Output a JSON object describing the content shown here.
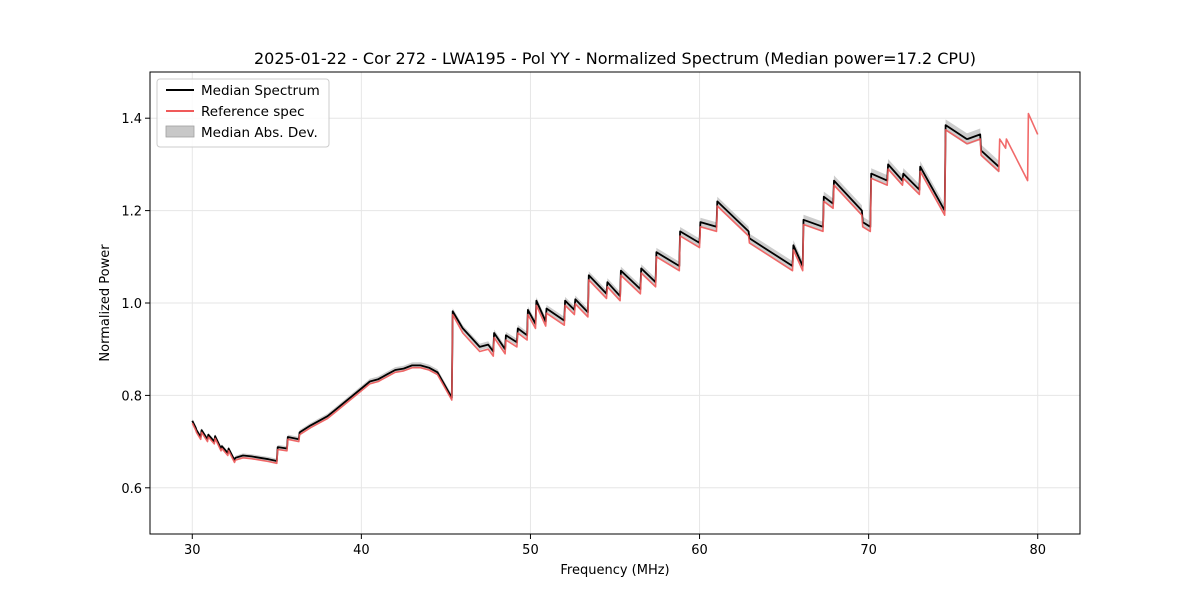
{
  "chart_data": {
    "type": "line",
    "title": "2025-01-22 - Cor 272 - LWA195 - Pol YY - Normalized Spectrum (Median power=17.2 CPU)",
    "xlabel": "Frequency (MHz)",
    "ylabel": "Normalized Power",
    "xlim": [
      27.5,
      82.5
    ],
    "ylim": [
      0.5,
      1.5
    ],
    "xticks": [
      30,
      40,
      50,
      60,
      70,
      80
    ],
    "yticks": [
      0.6,
      0.8,
      1.0,
      1.2,
      1.4
    ],
    "grid": true,
    "legend_position": "top-left",
    "series": [
      {
        "name": "Median Spectrum",
        "color": "#000000",
        "x": [
          30.0,
          30.2,
          30.25,
          30.5,
          30.55,
          30.9,
          30.95,
          31.3,
          31.35,
          31.7,
          31.75,
          32.1,
          32.15,
          32.5,
          32.55,
          33.0,
          33.5,
          34.0,
          34.5,
          35.0,
          35.05,
          35.6,
          35.65,
          36.3,
          36.35,
          37.0,
          37.5,
          38.0,
          38.5,
          39.0,
          39.5,
          40.0,
          40.5,
          41.0,
          41.5,
          42.0,
          42.5,
          43.0,
          43.5,
          44.0,
          44.5,
          45.35,
          45.4,
          46.0,
          46.5,
          47.0,
          47.5,
          47.8,
          47.85,
          48.5,
          48.55,
          49.2,
          49.25,
          49.8,
          49.85,
          50.3,
          50.35,
          50.9,
          50.95,
          52.0,
          52.05,
          52.6,
          52.65,
          53.4,
          53.45,
          54.5,
          54.55,
          55.3,
          55.35,
          56.5,
          56.55,
          57.4,
          57.45,
          58.8,
          58.85,
          60.0,
          60.05,
          61.0,
          61.05,
          62.9,
          62.95,
          65.5,
          65.55,
          66.1,
          66.15,
          67.3,
          67.35,
          67.9,
          67.95,
          69.6,
          69.65,
          70.1,
          70.15,
          71.1,
          71.15,
          72.0,
          72.05,
          73.0,
          73.05,
          74.5,
          74.55,
          75.8,
          75.85,
          76.6,
          76.65,
          77.7
        ],
        "values": [
          0.745,
          0.73,
          0.725,
          0.71,
          0.725,
          0.705,
          0.715,
          0.7,
          0.712,
          0.685,
          0.69,
          0.675,
          0.685,
          0.66,
          0.665,
          0.67,
          0.668,
          0.665,
          0.662,
          0.658,
          0.688,
          0.685,
          0.71,
          0.705,
          0.72,
          0.735,
          0.745,
          0.755,
          0.77,
          0.785,
          0.8,
          0.815,
          0.83,
          0.835,
          0.845,
          0.855,
          0.858,
          0.865,
          0.865,
          0.86,
          0.85,
          0.795,
          0.982,
          0.945,
          0.925,
          0.905,
          0.91,
          0.895,
          0.935,
          0.9,
          0.93,
          0.915,
          0.945,
          0.93,
          0.985,
          0.955,
          1.005,
          0.96,
          0.988,
          0.962,
          1.005,
          0.985,
          1.008,
          0.98,
          1.06,
          1.02,
          1.045,
          1.015,
          1.07,
          1.03,
          1.075,
          1.045,
          1.11,
          1.08,
          1.155,
          1.13,
          1.175,
          1.165,
          1.22,
          1.155,
          1.14,
          1.08,
          1.125,
          1.08,
          1.18,
          1.165,
          1.23,
          1.215,
          1.265,
          1.2,
          1.175,
          1.165,
          1.28,
          1.265,
          1.3,
          1.265,
          1.28,
          1.245,
          1.295,
          1.2,
          1.385,
          1.355,
          1.355,
          1.365,
          1.33,
          1.295
        ],
        "estimated": true
      },
      {
        "name": "Reference spec",
        "color": "#f05a5a",
        "x": [
          30.0,
          30.2,
          30.25,
          30.5,
          30.55,
          30.9,
          30.95,
          31.3,
          31.35,
          31.7,
          31.75,
          32.1,
          32.15,
          32.5,
          32.55,
          33.0,
          33.5,
          34.0,
          34.5,
          35.0,
          35.05,
          35.6,
          35.65,
          36.3,
          36.35,
          37.0,
          37.5,
          38.0,
          38.5,
          39.0,
          39.5,
          40.0,
          40.5,
          41.0,
          41.5,
          42.0,
          42.5,
          43.0,
          43.5,
          44.0,
          44.5,
          45.35,
          45.4,
          46.0,
          46.5,
          47.0,
          47.5,
          47.8,
          47.85,
          48.5,
          48.55,
          49.2,
          49.25,
          49.8,
          49.85,
          50.3,
          50.35,
          50.9,
          50.95,
          52.0,
          52.05,
          52.6,
          52.65,
          53.4,
          53.45,
          54.5,
          54.55,
          55.3,
          55.35,
          56.5,
          56.55,
          57.4,
          57.45,
          58.8,
          58.85,
          60.0,
          60.05,
          61.0,
          61.05,
          62.9,
          62.95,
          65.5,
          65.55,
          66.1,
          66.15,
          67.3,
          67.35,
          67.9,
          67.95,
          69.6,
          69.65,
          70.1,
          70.15,
          71.1,
          71.15,
          72.0,
          72.05,
          73.0,
          73.05,
          74.5,
          74.55,
          75.8,
          75.85,
          76.6,
          76.65,
          77.7,
          77.75,
          78.1,
          78.15,
          79.4,
          79.45,
          80.0
        ],
        "values": [
          0.74,
          0.725,
          0.72,
          0.705,
          0.72,
          0.7,
          0.71,
          0.695,
          0.707,
          0.68,
          0.685,
          0.67,
          0.68,
          0.655,
          0.66,
          0.665,
          0.663,
          0.66,
          0.657,
          0.653,
          0.683,
          0.68,
          0.705,
          0.7,
          0.715,
          0.73,
          0.74,
          0.75,
          0.765,
          0.78,
          0.795,
          0.81,
          0.825,
          0.83,
          0.84,
          0.85,
          0.853,
          0.86,
          0.86,
          0.855,
          0.845,
          0.79,
          0.975,
          0.935,
          0.915,
          0.895,
          0.9,
          0.885,
          0.925,
          0.89,
          0.92,
          0.905,
          0.935,
          0.92,
          0.975,
          0.945,
          0.995,
          0.95,
          0.978,
          0.952,
          0.995,
          0.975,
          0.998,
          0.97,
          1.05,
          1.01,
          1.035,
          1.005,
          1.06,
          1.02,
          1.065,
          1.035,
          1.1,
          1.07,
          1.145,
          1.12,
          1.165,
          1.155,
          1.21,
          1.145,
          1.13,
          1.07,
          1.115,
          1.07,
          1.17,
          1.155,
          1.22,
          1.205,
          1.255,
          1.19,
          1.165,
          1.155,
          1.27,
          1.255,
          1.29,
          1.255,
          1.27,
          1.235,
          1.285,
          1.19,
          1.375,
          1.345,
          1.345,
          1.355,
          1.32,
          1.285,
          1.355,
          1.335,
          1.355,
          1.265,
          1.41,
          1.365
        ],
        "estimated": true
      },
      {
        "name": "Median Abs. Dev.",
        "type": "band",
        "color": "#c8c8c8",
        "around": "Median Spectrum",
        "halfwidth_min": 0.004,
        "halfwidth_max": 0.013
      }
    ]
  }
}
